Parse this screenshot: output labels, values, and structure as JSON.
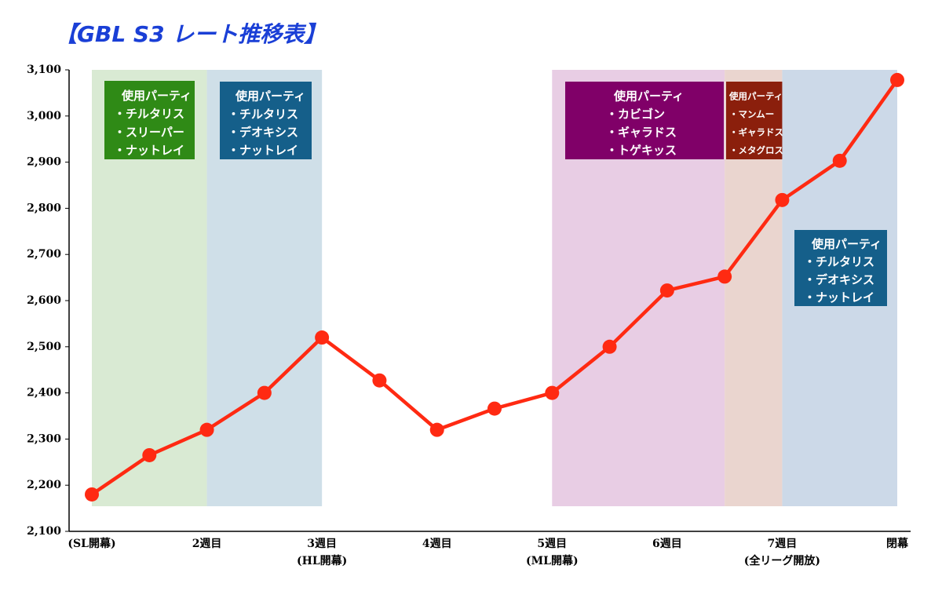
{
  "chart_data": {
    "type": "line",
    "title": "【GBL S3 レート推移表】",
    "categories": [
      "(SL開幕)",
      null,
      "2週目",
      null,
      "3週目",
      null,
      "4週目",
      null,
      "5週目",
      null,
      "6週目",
      null,
      "7週目",
      null,
      "閉幕"
    ],
    "category_notes": [
      null,
      null,
      null,
      null,
      "(HL開幕)",
      null,
      null,
      null,
      "(ML開幕)",
      null,
      null,
      null,
      "(全リーグ開放)",
      null,
      null
    ],
    "series": [
      {
        "name": "レート",
        "color": "#ff2a12",
        "values": [
          2180,
          2265,
          2320,
          2400,
          2520,
          2427,
          2320,
          2366,
          2400,
          2500,
          2622,
          2652,
          2818,
          2903,
          3078
        ]
      }
    ],
    "ylim": [
      2100,
      3100
    ],
    "yticks": [
      {
        "value": 2100,
        "label": "2,100"
      },
      {
        "value": 2200,
        "label": "2,200"
      },
      {
        "value": 2300,
        "label": "2,300"
      },
      {
        "value": 2400,
        "label": "2,400"
      },
      {
        "value": 2500,
        "label": "2,500"
      },
      {
        "value": 2600,
        "label": "2,600"
      },
      {
        "value": 2700,
        "label": "2,700"
      },
      {
        "value": 2800,
        "label": "2,800"
      },
      {
        "value": 2900,
        "label": "2,900"
      },
      {
        "value": 3000,
        "label": "3,000"
      },
      {
        "value": 3100,
        "label": "3,100"
      }
    ],
    "bands": [
      {
        "from": 0,
        "to": 2,
        "color": "#d9ead3",
        "box": {
          "color": "#2f8a16",
          "title": "使用パーティ",
          "items": [
            "・チルタリス",
            "・スリーパー",
            "・ナットレイ"
          ]
        }
      },
      {
        "from": 2,
        "to": 4,
        "color": "#cfdfe8",
        "box": {
          "color": "#155f8a",
          "title": "使用パーティ",
          "items": [
            "・チルタリス",
            "・デオキシス",
            "・ナットレイ"
          ]
        }
      },
      {
        "from": 8,
        "to": 11,
        "color": "#e8cde4",
        "box": {
          "color": "#800068",
          "title": "使用パーティ",
          "items": [
            "・カビゴン",
            "・ギャラドス",
            "・トゲキッス"
          ]
        }
      },
      {
        "from": 11,
        "to": 12,
        "color": "#ead5cf",
        "box": {
          "color": "#8b1f0c",
          "title": "使用パーティ",
          "items": [
            "・マンムー",
            "・ギャラドス",
            "・メタグロス"
          ]
        }
      },
      {
        "from": 12,
        "to": 14,
        "color": "#ccd9e8",
        "box": {
          "color": "#155f8a",
          "title": "使用パーティ",
          "items": [
            "・チルタリス",
            "・デオキシス",
            "・ナットレイ"
          ]
        }
      }
    ]
  }
}
